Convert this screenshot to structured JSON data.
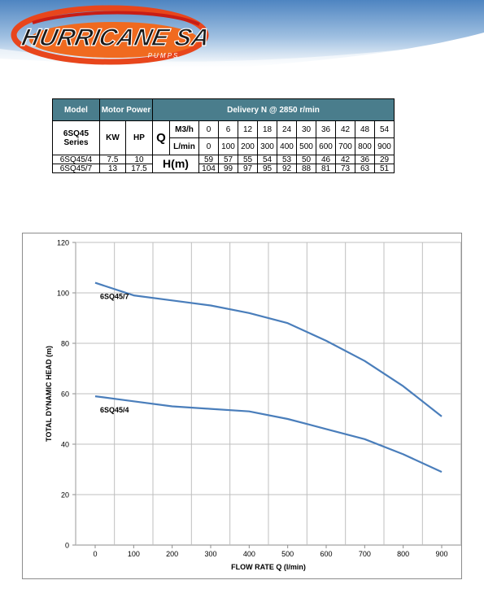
{
  "brand": {
    "name": "HURRICANE SA",
    "tagline": "P U M P S"
  },
  "table": {
    "headers": {
      "model": "Model",
      "motor_power": "Motor Power",
      "delivery": "Delivery N @ 2850 r/min"
    },
    "series_label": "6SQ45 Series",
    "kw": "KW",
    "hp": "HP",
    "q_label": "Q",
    "h_label": "H(m)",
    "m3h_label": "M3/h",
    "lmin_label": "L/min",
    "m3h": [
      "0",
      "6",
      "12",
      "18",
      "24",
      "30",
      "36",
      "42",
      "48",
      "54"
    ],
    "lmin": [
      "0",
      "100",
      "200",
      "300",
      "400",
      "500",
      "600",
      "700",
      "800",
      "900"
    ],
    "rows": [
      {
        "model": "6SQ45/4",
        "kw": "7.5",
        "hp": "10",
        "h": [
          "59",
          "57",
          "55",
          "54",
          "53",
          "50",
          "46",
          "42",
          "36",
          "29"
        ]
      },
      {
        "model": "6SQ45/7",
        "kw": "13",
        "hp": "17.5",
        "h": [
          "104",
          "99",
          "97",
          "95",
          "92",
          "88",
          "81",
          "73",
          "63",
          "51"
        ]
      }
    ]
  },
  "chart_data": {
    "type": "line",
    "xlabel": "FLOW RATE Q (l/min)",
    "ylabel": "TOTAL DYNAMIC HEAD (m)",
    "xlim": [
      0,
      900
    ],
    "ylim": [
      0,
      120
    ],
    "x_ticks": [
      0,
      100,
      200,
      300,
      400,
      500,
      600,
      700,
      800,
      900
    ],
    "y_ticks": [
      0,
      20,
      40,
      60,
      80,
      100,
      120
    ],
    "grid": true,
    "line_color": "#4a7ebb",
    "x": [
      0,
      100,
      200,
      300,
      400,
      500,
      600,
      700,
      800,
      900
    ],
    "series": [
      {
        "name": "6SQ45/7",
        "values": [
          104,
          99,
          97,
          95,
          92,
          88,
          81,
          73,
          63,
          51
        ]
      },
      {
        "name": "6SQ45/4",
        "values": [
          59,
          57,
          55,
          54,
          53,
          50,
          46,
          42,
          36,
          29
        ]
      }
    ]
  }
}
